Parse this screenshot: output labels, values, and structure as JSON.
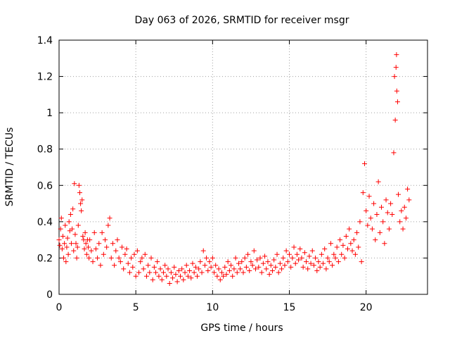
{
  "chart_data": {
    "type": "scatter",
    "title": "Day 063 of 2026, SRMTID for receiver msgr",
    "xlabel": "GPS time / hours",
    "ylabel": "SRMTID / TECUs",
    "xlim": [
      0,
      24
    ],
    "ylim": [
      0,
      1.4
    ],
    "xticks": [
      0,
      5,
      10,
      15,
      20
    ],
    "yticks": [
      0,
      0.2,
      0.4,
      0.6,
      0.8,
      1,
      1.2,
      1.4
    ],
    "ytick_labels": [
      "0",
      "0.2",
      "0.4",
      "0.6",
      "0.8",
      "1",
      "1.2",
      "1.4"
    ],
    "grid": true,
    "marker": "+",
    "series": [
      {
        "name": "SRMTID",
        "color": "#ff0000",
        "points": [
          [
            0.0,
            0.3
          ],
          [
            0.05,
            0.27
          ],
          [
            0.1,
            0.36
          ],
          [
            0.15,
            0.42
          ],
          [
            0.2,
            0.25
          ],
          [
            0.25,
            0.32
          ],
          [
            0.3,
            0.2
          ],
          [
            0.35,
            0.28
          ],
          [
            0.4,
            0.38
          ],
          [
            0.45,
            0.18
          ],
          [
            0.5,
            0.26
          ],
          [
            0.55,
            0.31
          ],
          [
            0.6,
            0.22
          ],
          [
            0.65,
            0.4
          ],
          [
            0.7,
            0.35
          ],
          [
            0.75,
            0.44
          ],
          [
            0.8,
            0.28
          ],
          [
            0.85,
            0.36
          ],
          [
            0.9,
            0.47
          ],
          [
            0.95,
            0.24
          ],
          [
            1.0,
            0.61
          ],
          [
            1.05,
            0.33
          ],
          [
            1.1,
            0.28
          ],
          [
            1.15,
            0.2
          ],
          [
            1.2,
            0.26
          ],
          [
            1.25,
            0.38
          ],
          [
            1.3,
            0.6
          ],
          [
            1.35,
            0.56
          ],
          [
            1.4,
            0.5
          ],
          [
            1.45,
            0.46
          ],
          [
            1.5,
            0.52
          ],
          [
            1.55,
            0.32
          ],
          [
            1.6,
            0.3
          ],
          [
            1.65,
            0.25
          ],
          [
            1.7,
            0.34
          ],
          [
            1.75,
            0.28
          ],
          [
            1.8,
            0.22
          ],
          [
            1.85,
            0.3
          ],
          [
            1.9,
            0.26
          ],
          [
            1.95,
            0.2
          ],
          [
            2.0,
            0.3
          ],
          [
            2.1,
            0.24
          ],
          [
            2.2,
            0.18
          ],
          [
            2.3,
            0.34
          ],
          [
            2.4,
            0.25
          ],
          [
            2.5,
            0.2
          ],
          [
            2.6,
            0.28
          ],
          [
            2.7,
            0.16
          ],
          [
            2.8,
            0.34
          ],
          [
            2.9,
            0.22
          ],
          [
            3.0,
            0.3
          ],
          [
            3.1,
            0.26
          ],
          [
            3.2,
            0.38
          ],
          [
            3.3,
            0.42
          ],
          [
            3.4,
            0.2
          ],
          [
            3.5,
            0.28
          ],
          [
            3.6,
            0.16
          ],
          [
            3.7,
            0.24
          ],
          [
            3.8,
            0.3
          ],
          [
            3.9,
            0.2
          ],
          [
            4.0,
            0.18
          ],
          [
            4.1,
            0.26
          ],
          [
            4.2,
            0.14
          ],
          [
            4.3,
            0.22
          ],
          [
            4.4,
            0.25
          ],
          [
            4.5,
            0.17
          ],
          [
            4.6,
            0.12
          ],
          [
            4.7,
            0.2
          ],
          [
            4.8,
            0.15
          ],
          [
            4.9,
            0.22
          ],
          [
            5.0,
            0.1
          ],
          [
            5.1,
            0.24
          ],
          [
            5.2,
            0.12
          ],
          [
            5.3,
            0.18
          ],
          [
            5.4,
            0.2
          ],
          [
            5.5,
            0.14
          ],
          [
            5.6,
            0.22
          ],
          [
            5.7,
            0.1
          ],
          [
            5.8,
            0.16
          ],
          [
            5.9,
            0.12
          ],
          [
            6.0,
            0.2
          ],
          [
            6.1,
            0.08
          ],
          [
            6.2,
            0.15
          ],
          [
            6.3,
            0.12
          ],
          [
            6.4,
            0.18
          ],
          [
            6.5,
            0.1
          ],
          [
            6.6,
            0.14
          ],
          [
            6.7,
            0.08
          ],
          [
            6.8,
            0.12
          ],
          [
            6.9,
            0.16
          ],
          [
            7.0,
            0.1
          ],
          [
            7.1,
            0.14
          ],
          [
            7.2,
            0.06
          ],
          [
            7.3,
            0.12
          ],
          [
            7.4,
            0.09
          ],
          [
            7.5,
            0.15
          ],
          [
            7.6,
            0.11
          ],
          [
            7.7,
            0.07
          ],
          [
            7.8,
            0.13
          ],
          [
            7.9,
            0.1
          ],
          [
            8.0,
            0.14
          ],
          [
            8.1,
            0.08
          ],
          [
            8.2,
            0.12
          ],
          [
            8.3,
            0.16
          ],
          [
            8.4,
            0.1
          ],
          [
            8.5,
            0.13
          ],
          [
            8.6,
            0.09
          ],
          [
            8.7,
            0.17
          ],
          [
            8.8,
            0.12
          ],
          [
            8.9,
            0.15
          ],
          [
            9.0,
            0.1
          ],
          [
            9.1,
            0.14
          ],
          [
            9.2,
            0.18
          ],
          [
            9.3,
            0.12
          ],
          [
            9.4,
            0.24
          ],
          [
            9.5,
            0.16
          ],
          [
            9.6,
            0.2
          ],
          [
            9.7,
            0.13
          ],
          [
            9.8,
            0.18
          ],
          [
            9.9,
            0.15
          ],
          [
            10.0,
            0.2
          ],
          [
            10.1,
            0.12
          ],
          [
            10.2,
            0.16
          ],
          [
            10.3,
            0.1
          ],
          [
            10.4,
            0.14
          ],
          [
            10.5,
            0.08
          ],
          [
            10.6,
            0.12
          ],
          [
            10.7,
            0.1
          ],
          [
            10.8,
            0.15
          ],
          [
            10.9,
            0.11
          ],
          [
            11.0,
            0.18
          ],
          [
            11.1,
            0.13
          ],
          [
            11.2,
            0.16
          ],
          [
            11.3,
            0.1
          ],
          [
            11.4,
            0.14
          ],
          [
            11.5,
            0.2
          ],
          [
            11.6,
            0.12
          ],
          [
            11.7,
            0.17
          ],
          [
            11.8,
            0.14
          ],
          [
            11.9,
            0.18
          ],
          [
            12.0,
            0.12
          ],
          [
            12.1,
            0.2
          ],
          [
            12.2,
            0.15
          ],
          [
            12.3,
            0.22
          ],
          [
            12.4,
            0.13
          ],
          [
            12.5,
            0.18
          ],
          [
            12.6,
            0.16
          ],
          [
            12.7,
            0.24
          ],
          [
            12.8,
            0.14
          ],
          [
            12.9,
            0.19
          ],
          [
            13.0,
            0.15
          ],
          [
            13.1,
            0.2
          ],
          [
            13.2,
            0.12
          ],
          [
            13.3,
            0.17
          ],
          [
            13.4,
            0.21
          ],
          [
            13.5,
            0.14
          ],
          [
            13.6,
            0.18
          ],
          [
            13.7,
            0.11
          ],
          [
            13.8,
            0.16
          ],
          [
            13.9,
            0.13
          ],
          [
            14.0,
            0.19
          ],
          [
            14.1,
            0.15
          ],
          [
            14.2,
            0.22
          ],
          [
            14.3,
            0.12
          ],
          [
            14.4,
            0.17
          ],
          [
            14.5,
            0.14
          ],
          [
            14.6,
            0.2
          ],
          [
            14.7,
            0.16
          ],
          [
            14.8,
            0.24
          ],
          [
            14.9,
            0.18
          ],
          [
            15.0,
            0.22
          ],
          [
            15.1,
            0.15
          ],
          [
            15.2,
            0.2
          ],
          [
            15.3,
            0.26
          ],
          [
            15.4,
            0.17
          ],
          [
            15.5,
            0.22
          ],
          [
            15.6,
            0.19
          ],
          [
            15.7,
            0.25
          ],
          [
            15.8,
            0.2
          ],
          [
            15.9,
            0.15
          ],
          [
            16.0,
            0.23
          ],
          [
            16.1,
            0.18
          ],
          [
            16.2,
            0.14
          ],
          [
            16.3,
            0.21
          ],
          [
            16.4,
            0.17
          ],
          [
            16.5,
            0.24
          ],
          [
            16.6,
            0.16
          ],
          [
            16.7,
            0.2
          ],
          [
            16.8,
            0.13
          ],
          [
            16.9,
            0.18
          ],
          [
            17.0,
            0.15
          ],
          [
            17.1,
            0.22
          ],
          [
            17.2,
            0.17
          ],
          [
            17.3,
            0.25
          ],
          [
            17.4,
            0.14
          ],
          [
            17.5,
            0.2
          ],
          [
            17.6,
            0.18
          ],
          [
            17.7,
            0.28
          ],
          [
            17.8,
            0.16
          ],
          [
            17.9,
            0.22
          ],
          [
            18.0,
            0.2
          ],
          [
            18.1,
            0.26
          ],
          [
            18.2,
            0.18
          ],
          [
            18.3,
            0.3
          ],
          [
            18.4,
            0.22
          ],
          [
            18.5,
            0.27
          ],
          [
            18.6,
            0.2
          ],
          [
            18.7,
            0.32
          ],
          [
            18.8,
            0.25
          ],
          [
            18.9,
            0.36
          ],
          [
            19.0,
            0.28
          ],
          [
            19.1,
            0.24
          ],
          [
            19.2,
            0.3
          ],
          [
            19.3,
            0.22
          ],
          [
            19.4,
            0.34
          ],
          [
            19.5,
            0.26
          ],
          [
            19.6,
            0.4
          ],
          [
            19.7,
            0.18
          ],
          [
            19.8,
            0.56
          ],
          [
            19.9,
            0.72
          ],
          [
            20.0,
            0.46
          ],
          [
            20.1,
            0.38
          ],
          [
            20.2,
            0.54
          ],
          [
            20.3,
            0.42
          ],
          [
            20.4,
            0.36
          ],
          [
            20.5,
            0.5
          ],
          [
            20.6,
            0.3
          ],
          [
            20.7,
            0.44
          ],
          [
            20.8,
            0.62
          ],
          [
            20.9,
            0.34
          ],
          [
            21.0,
            0.48
          ],
          [
            21.1,
            0.4
          ],
          [
            21.2,
            0.28
          ],
          [
            21.3,
            0.52
          ],
          [
            21.4,
            0.45
          ],
          [
            21.5,
            0.36
          ],
          [
            21.6,
            0.5
          ],
          [
            21.7,
            0.44
          ],
          [
            21.8,
            0.78
          ],
          [
            21.9,
            0.96
          ],
          [
            22.0,
            1.12
          ],
          [
            21.95,
            1.25
          ],
          [
            21.85,
            1.2
          ],
          [
            22.05,
            1.06
          ],
          [
            21.98,
            1.32
          ],
          [
            22.1,
            0.55
          ],
          [
            22.2,
            0.4
          ],
          [
            22.3,
            0.46
          ],
          [
            22.4,
            0.36
          ],
          [
            22.5,
            0.48
          ],
          [
            22.6,
            0.42
          ],
          [
            22.7,
            0.58
          ],
          [
            22.8,
            0.52
          ]
        ]
      }
    ]
  }
}
